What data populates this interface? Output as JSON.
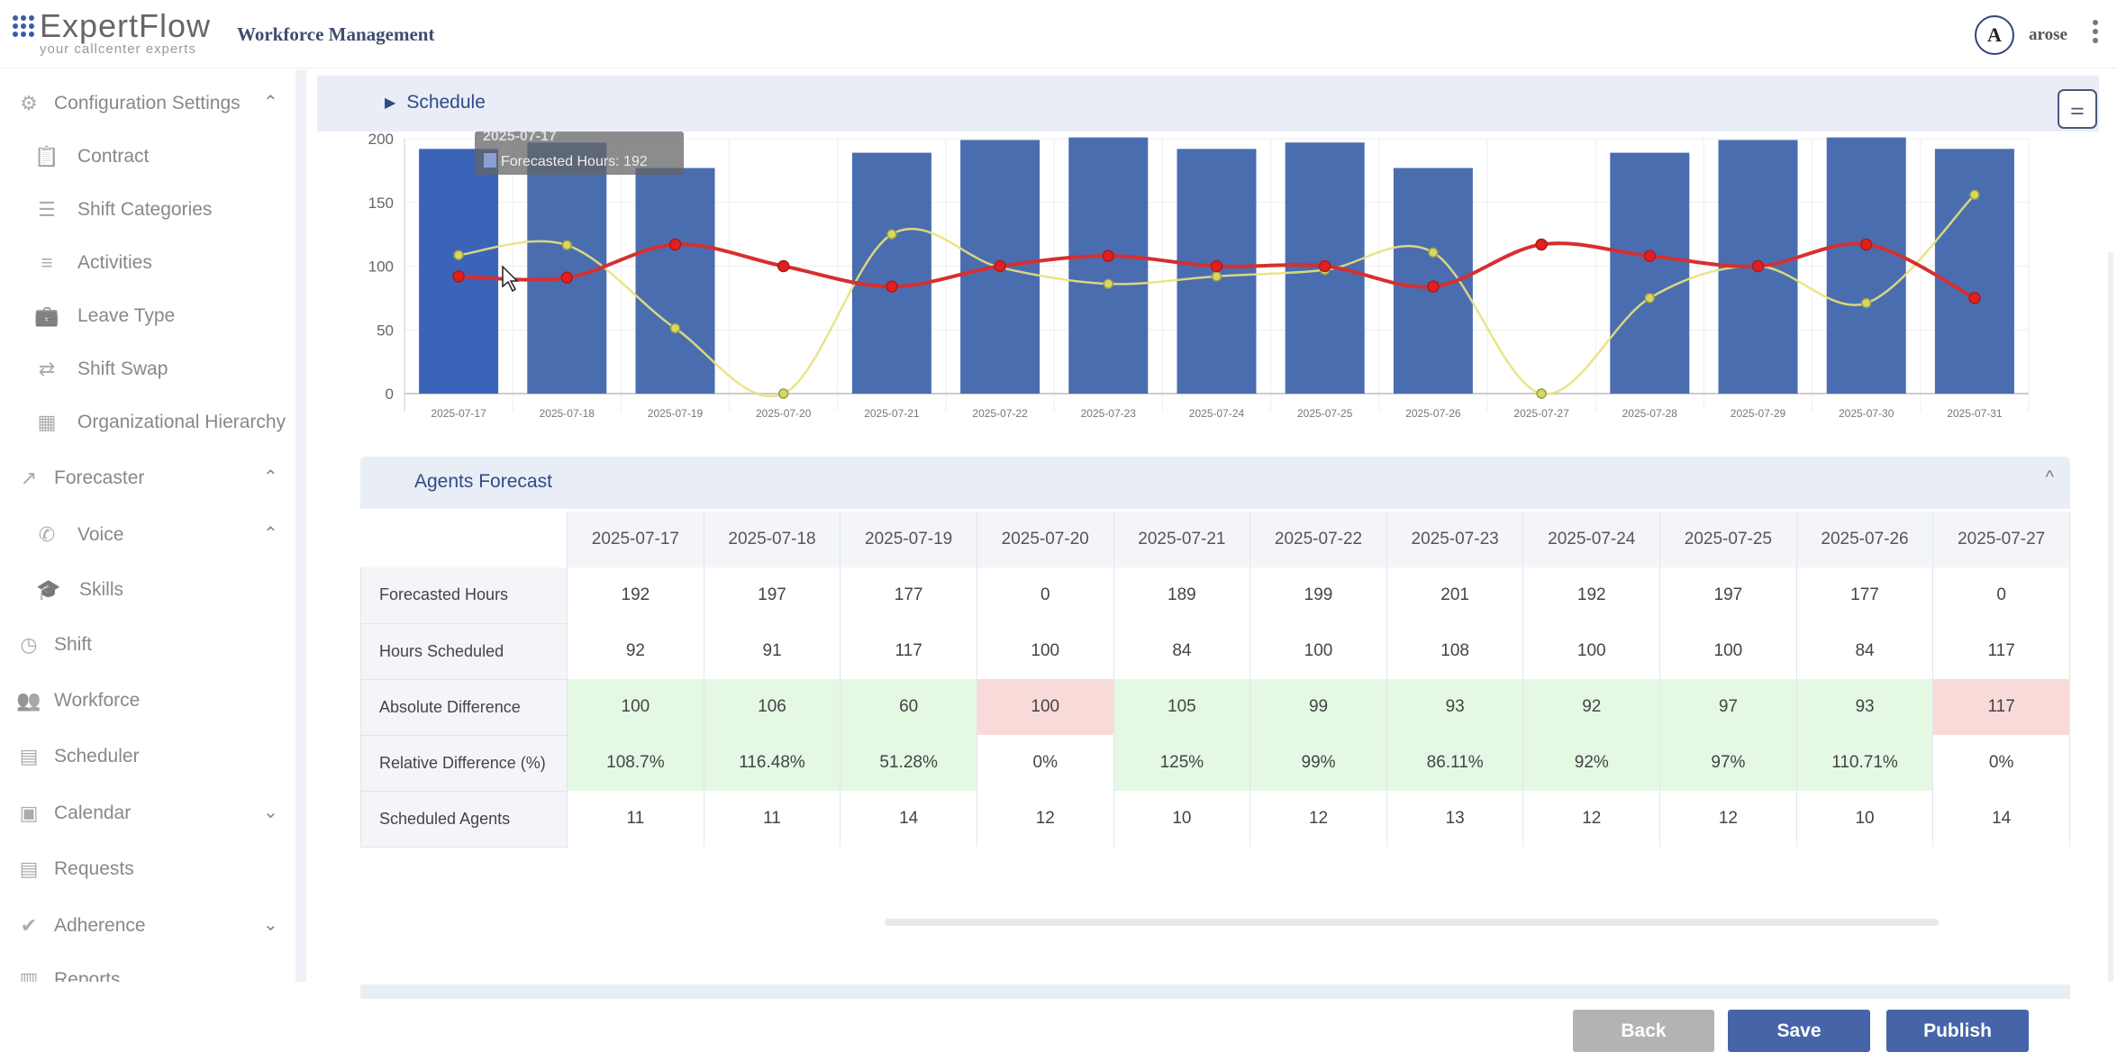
{
  "header": {
    "logo_text": "ExpertFlow",
    "logo_tagline": "your callcenter experts",
    "app_title": "Workforce Management",
    "avatar_letter": "A",
    "username": "arose"
  },
  "sidebar": {
    "items": [
      {
        "label": "Configuration Settings",
        "icon": "gear-icon",
        "glyph": "⚙",
        "level": 0,
        "chevron": "^"
      },
      {
        "label": "Contract",
        "icon": "clipboard-icon",
        "glyph": "📋",
        "level": 1
      },
      {
        "label": "Shift Categories",
        "icon": "list-icon",
        "glyph": "☰",
        "level": 1
      },
      {
        "label": "Activities",
        "icon": "checklist-icon",
        "glyph": "≡",
        "level": 1
      },
      {
        "label": "Leave Type",
        "icon": "briefcase-icon",
        "glyph": "💼",
        "level": 1
      },
      {
        "label": "Shift Swap",
        "icon": "swap-icon",
        "glyph": "⇄",
        "level": 1
      },
      {
        "label": "Organizational Hierarchy",
        "icon": "building-icon",
        "glyph": "▦",
        "level": 1
      },
      {
        "label": "Forecaster",
        "icon": "trending-up-icon",
        "glyph": "↗",
        "level": 0,
        "chevron": "^"
      },
      {
        "label": "Voice",
        "icon": "phone-icon",
        "glyph": "✆",
        "level": 1,
        "chevron": "^"
      },
      {
        "label": "Skills",
        "icon": "graduation-cap-icon",
        "glyph": "🎓",
        "level": 2
      },
      {
        "label": "Shift",
        "icon": "clock-icon",
        "glyph": "◷",
        "level": 0
      },
      {
        "label": "Workforce",
        "icon": "people-icon",
        "glyph": "👥",
        "level": 0
      },
      {
        "label": "Scheduler",
        "icon": "calendar-grid-icon",
        "glyph": "▤",
        "level": 0
      },
      {
        "label": "Calendar",
        "icon": "calendar-icon",
        "glyph": "▣",
        "level": 0,
        "chevron": "v"
      },
      {
        "label": "Requests",
        "icon": "document-icon",
        "glyph": "▤",
        "level": 0
      },
      {
        "label": "Adherence",
        "icon": "check-circle-icon",
        "glyph": "✔",
        "level": 0,
        "chevron": "v"
      },
      {
        "label": "Reports",
        "icon": "report-icon",
        "glyph": "▥",
        "level": 0
      }
    ]
  },
  "schedule": {
    "title": "Schedule",
    "filter_icon": "sliders-icon"
  },
  "tooltip": {
    "title": "2025-07-17",
    "label": "Forecasted Hours",
    "value": "192"
  },
  "chart_data": {
    "type": "bar",
    "categories": [
      "2025-07-17",
      "2025-07-18",
      "2025-07-19",
      "2025-07-20",
      "2025-07-21",
      "2025-07-22",
      "2025-07-23",
      "2025-07-24",
      "2025-07-25",
      "2025-07-26",
      "2025-07-27",
      "2025-07-28",
      "2025-07-29",
      "2025-07-30",
      "2025-07-31"
    ],
    "ylim": [
      0,
      200
    ],
    "yticks": [
      0,
      50,
      100,
      150,
      200
    ],
    "grid": true,
    "series": [
      {
        "name": "Forecasted Hours",
        "kind": "bar",
        "color": "#4a6db0",
        "values": [
          192,
          197,
          177,
          0,
          189,
          199,
          201,
          192,
          197,
          177,
          0,
          189,
          199,
          201,
          192
        ]
      },
      {
        "kind": "line",
        "color": "#d62f2f",
        "values": [
          92,
          91,
          117,
          100,
          84,
          100,
          108,
          100,
          100,
          84,
          117,
          108,
          100,
          117,
          75
        ]
      },
      {
        "kind": "line",
        "color": "#e8e27a",
        "values": [
          108.7,
          116.48,
          51.28,
          0,
          125,
          99,
          86.11,
          92,
          97,
          110.71,
          0,
          75,
          100,
          71,
          156
        ]
      }
    ]
  },
  "agents_forecast": {
    "title": "Agents Forecast",
    "dates": [
      "2025-07-17",
      "2025-07-18",
      "2025-07-19",
      "2025-07-20",
      "2025-07-21",
      "2025-07-22",
      "2025-07-23",
      "2025-07-24",
      "2025-07-25",
      "2025-07-26",
      "2025-07-27"
    ],
    "rows": [
      {
        "label": "Forecasted Hours",
        "values": [
          "192",
          "197",
          "177",
          "0",
          "189",
          "199",
          "201",
          "192",
          "197",
          "177",
          "0"
        ]
      },
      {
        "label": "Hours Scheduled",
        "values": [
          "92",
          "91",
          "117",
          "100",
          "84",
          "100",
          "108",
          "100",
          "100",
          "84",
          "117"
        ]
      },
      {
        "label": "Absolute Difference",
        "values": [
          "100",
          "106",
          "60",
          "100",
          "105",
          "99",
          "93",
          "92",
          "97",
          "93",
          "117"
        ],
        "status": [
          "good",
          "good",
          "good",
          "bad",
          "good",
          "good",
          "good",
          "good",
          "good",
          "good",
          "bad"
        ]
      },
      {
        "label": "Relative Difference (%)",
        "values": [
          "108.7%",
          "116.48%",
          "51.28%",
          "0%",
          "125%",
          "99%",
          "86.11%",
          "92%",
          "97%",
          "110.71%",
          "0%"
        ],
        "status": [
          "good",
          "good",
          "good",
          "",
          "good",
          "good",
          "good",
          "good",
          "good",
          "good",
          ""
        ]
      },
      {
        "label": "Scheduled Agents",
        "values": [
          "11",
          "11",
          "14",
          "12",
          "10",
          "12",
          "13",
          "12",
          "12",
          "10",
          "14"
        ]
      }
    ]
  },
  "buttons": {
    "back": "Back",
    "save": "Save",
    "publish": "Publish"
  },
  "colors": {
    "primary": "#4664a8",
    "back": "#b3b3b3",
    "good": "#e4f8e4",
    "bad": "#f8dbd8"
  }
}
